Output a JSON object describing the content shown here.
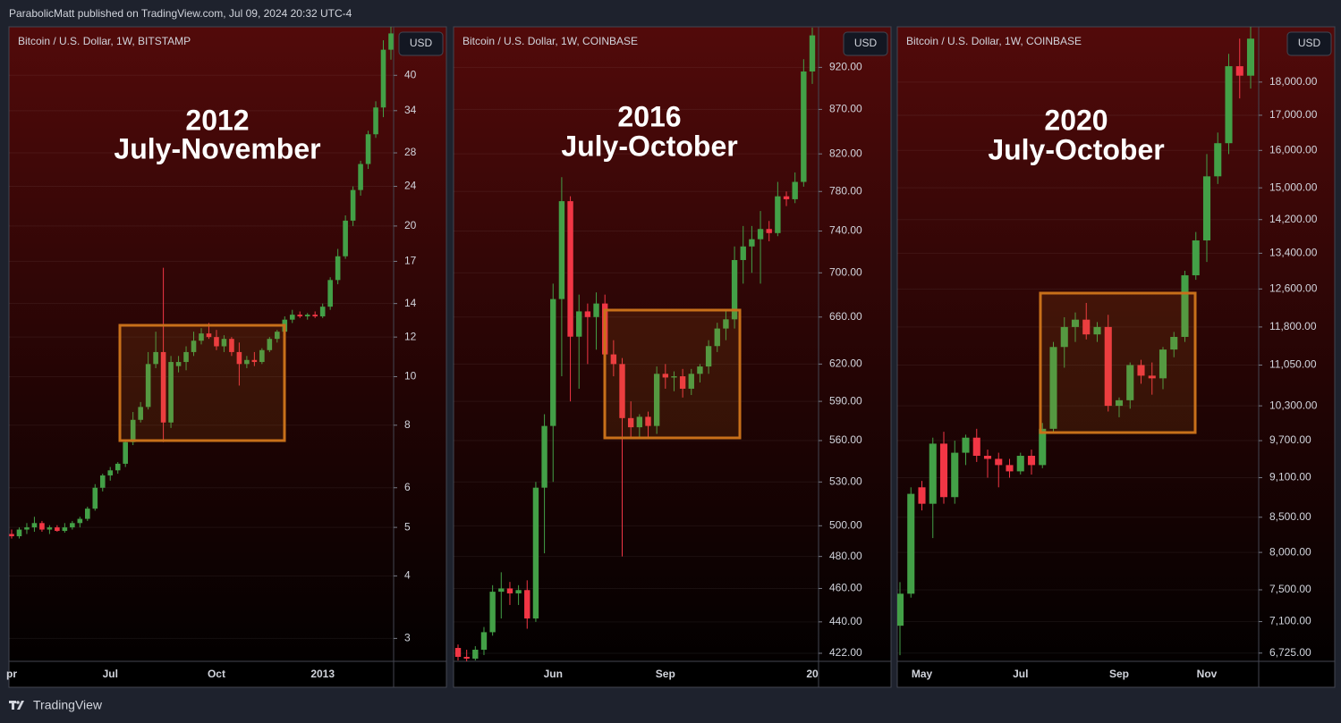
{
  "header": "ParabolicMatt published on TradingView.com, Jul 09, 2024 20:32 UTC-4",
  "footer": "TradingView",
  "chart_data": [
    {
      "type": "candlestick",
      "title": "Bitcoin / U.S. Dollar, 1W, BITSTAMP",
      "currency": "USD",
      "annotation": [
        "2012",
        "July-November"
      ],
      "log_scale": true,
      "grid": true,
      "up_color": "#43a047",
      "down_color": "#f23645",
      "ylim": [
        2.7,
        50
      ],
      "yticks": [
        40,
        34,
        28,
        24,
        20,
        17,
        14,
        12,
        10,
        8,
        6,
        5,
        4,
        3
      ],
      "categories": [
        "pr",
        null,
        null,
        null,
        null,
        null,
        null,
        null,
        null,
        null,
        null,
        null,
        null,
        "Jul",
        null,
        null,
        null,
        null,
        null,
        null,
        null,
        null,
        null,
        null,
        null,
        null,
        null,
        "Oct",
        null,
        null,
        null,
        null,
        null,
        null,
        null,
        null,
        null,
        null,
        null,
        null,
        null,
        "2013",
        null,
        null,
        null,
        null,
        null,
        null,
        null,
        null,
        null
      ],
      "open": [
        4.85,
        4.8,
        4.95,
        5.0,
        5.1,
        4.95,
        5.0,
        4.92,
        5.0,
        5.1,
        5.2,
        5.45,
        6.0,
        6.35,
        6.5,
        6.7,
        7.4,
        8.2,
        8.7,
        10.6,
        11.2,
        8.1,
        10.5,
        10.7,
        11.2,
        11.8,
        12.2,
        12.0,
        11.5,
        11.9,
        11.2,
        10.6,
        10.8,
        10.7,
        11.3,
        11.9,
        12.3,
        13.0,
        13.3,
        13.2,
        13.3,
        13.2,
        13.8,
        15.6,
        17.4,
        20.5,
        23.6,
        26.6,
        30.5,
        34.5,
        45.0
      ],
      "high": [
        4.95,
        5.0,
        5.1,
        5.25,
        5.15,
        5.05,
        5.05,
        5.1,
        5.15,
        5.25,
        5.5,
        6.1,
        6.4,
        6.6,
        6.75,
        7.5,
        8.5,
        8.9,
        11.2,
        12.3,
        16.5,
        11.0,
        11.0,
        11.5,
        12.3,
        12.5,
        12.8,
        12.4,
        12.1,
        12.0,
        11.7,
        11.0,
        11.2,
        11.4,
        12.0,
        12.4,
        13.2,
        13.6,
        13.5,
        13.4,
        13.5,
        14.0,
        15.8,
        18.0,
        21.0,
        24.0,
        27.0,
        31.0,
        35.5,
        47.0,
        50.0
      ],
      "low": [
        4.75,
        4.75,
        4.85,
        4.9,
        4.9,
        4.85,
        4.9,
        4.88,
        4.95,
        5.0,
        5.15,
        5.4,
        5.9,
        6.2,
        6.4,
        6.6,
        7.3,
        8.1,
        8.6,
        10.4,
        7.4,
        7.9,
        10.2,
        10.3,
        11.0,
        11.6,
        11.9,
        11.3,
        11.2,
        11.0,
        9.6,
        10.4,
        10.5,
        10.6,
        11.2,
        11.7,
        12.1,
        12.8,
        13.1,
        13.0,
        13.1,
        13.1,
        13.6,
        15.3,
        17.2,
        20.0,
        23.0,
        26.0,
        30.0,
        33.0,
        43.0
      ],
      "close": [
        4.8,
        4.95,
        5.0,
        5.1,
        4.95,
        5.0,
        4.92,
        5.0,
        5.1,
        5.2,
        5.45,
        6.0,
        6.35,
        6.5,
        6.7,
        7.4,
        8.2,
        8.7,
        10.6,
        11.2,
        8.1,
        10.7,
        10.7,
        11.2,
        11.8,
        12.2,
        12.0,
        11.5,
        11.9,
        11.2,
        10.6,
        10.8,
        10.7,
        11.3,
        11.9,
        12.3,
        13.0,
        13.3,
        13.2,
        13.3,
        13.2,
        13.8,
        15.6,
        17.4,
        20.5,
        23.6,
        26.6,
        30.5,
        34.5,
        45.0,
        48.5
      ]
    },
    {
      "type": "candlestick",
      "title": "Bitcoin / U.S. Dollar, 1W, COINBASE",
      "currency": "USD",
      "annotation": [
        "2016",
        "July-October"
      ],
      "log_scale": true,
      "grid": true,
      "up_color": "#43a047",
      "down_color": "#f23645",
      "ylim": [
        417.5,
        971
      ],
      "yticks": [
        {
          "value": 920,
          "label": "920.00"
        },
        {
          "value": 870,
          "label": "870.00"
        },
        {
          "value": 820,
          "label": "820.00"
        },
        {
          "value": 780,
          "label": "780.00"
        },
        {
          "value": 740,
          "label": "740.00"
        },
        {
          "value": 700,
          "label": "700.00"
        },
        {
          "value": 660,
          "label": "660.00"
        },
        {
          "value": 620,
          "label": "620.00"
        },
        {
          "value": 590,
          "label": "590.00"
        },
        {
          "value": 560,
          "label": "560.00"
        },
        {
          "value": 530,
          "label": "530.00"
        },
        {
          "value": 500,
          "label": "500.00"
        },
        {
          "value": 480,
          "label": "480.00"
        },
        {
          "value": 460,
          "label": "460.00"
        },
        {
          "value": 440,
          "label": "440.00"
        },
        {
          "value": 422,
          "label": "422.00"
        }
      ],
      "categories": [
        null,
        null,
        null,
        null,
        null,
        null,
        null,
        null,
        null,
        null,
        null,
        "Jun",
        null,
        null,
        null,
        null,
        null,
        null,
        null,
        null,
        null,
        null,
        null,
        null,
        "Sep",
        null,
        null,
        null,
        null,
        null,
        null,
        null,
        null,
        null,
        null,
        null,
        null,
        null,
        null,
        null,
        null,
        "20"
      ],
      "open": [
        425,
        420,
        419,
        424,
        434,
        458,
        460,
        457,
        459,
        442,
        526,
        571,
        676,
        770,
        643,
        665,
        660,
        672,
        628,
        620,
        577,
        570,
        578,
        571,
        612,
        609,
        610,
        600,
        612,
        618,
        635,
        650,
        658,
        712,
        725,
        732,
        742,
        738,
        775,
        772,
        790,
        915
      ],
      "high": [
        427,
        424,
        426,
        437,
        462,
        470,
        464,
        462,
        465,
        530,
        580,
        690,
        795,
        775,
        680,
        672,
        682,
        680,
        640,
        625,
        590,
        580,
        582,
        618,
        620,
        614,
        616,
        616,
        620,
        640,
        655,
        665,
        725,
        745,
        745,
        760,
        750,
        790,
        780,
        800,
        930,
        970
      ],
      "low": [
        418,
        417,
        418,
        421,
        432,
        442,
        450,
        450,
        436,
        440,
        482,
        530,
        610,
        590,
        600,
        620,
        632,
        620,
        610,
        480,
        562,
        562,
        562,
        565,
        600,
        598,
        593,
        595,
        605,
        612,
        630,
        640,
        650,
        690,
        700,
        690,
        730,
        735,
        765,
        768,
        785,
        900
      ],
      "close": [
        420,
        419,
        424,
        434,
        458,
        460,
        457,
        459,
        442,
        526,
        571,
        676,
        770,
        643,
        665,
        660,
        672,
        628,
        620,
        577,
        570,
        578,
        571,
        612,
        609,
        610,
        600,
        612,
        618,
        635,
        650,
        658,
        712,
        725,
        732,
        742,
        738,
        775,
        772,
        790,
        915,
        960
      ]
    },
    {
      "type": "candlestick",
      "title": "Bitcoin / U.S. Dollar, 1W, COINBASE",
      "currency": "USD",
      "annotation": [
        "2020",
        "July-October"
      ],
      "log_scale": true,
      "grid": true,
      "up_color": "#43a047",
      "down_color": "#f23645",
      "ylim": [
        6630,
        19800
      ],
      "yticks": [
        {
          "value": 18000,
          "label": "18,000.00"
        },
        {
          "value": 17000,
          "label": "17,000.00"
        },
        {
          "value": 16000,
          "label": "16,000.00"
        },
        {
          "value": 15000,
          "label": "15,000.00"
        },
        {
          "value": 14200,
          "label": "14,200.00"
        },
        {
          "value": 13400,
          "label": "13,400.00"
        },
        {
          "value": 12600,
          "label": "12,600.00"
        },
        {
          "value": 11800,
          "label": "11,800.00"
        },
        {
          "value": 11050,
          "label": "11,050.00"
        },
        {
          "value": 10300,
          "label": "10,300.00"
        },
        {
          "value": 9700,
          "label": "9,700.00"
        },
        {
          "value": 9100,
          "label": "9,100.00"
        },
        {
          "value": 8500,
          "label": "8,500.00"
        },
        {
          "value": 8000,
          "label": "8,000.00"
        },
        {
          "value": 7500,
          "label": "7,500.00"
        },
        {
          "value": 7100,
          "label": "7,100.00"
        },
        {
          "value": 6725,
          "label": "6,725.00"
        }
      ],
      "categories": [
        null,
        null,
        "May",
        null,
        null,
        null,
        null,
        null,
        null,
        null,
        null,
        "Jul",
        null,
        null,
        null,
        null,
        null,
        null,
        null,
        null,
        "Sep",
        null,
        null,
        null,
        null,
        null,
        null,
        null,
        "Nov",
        null,
        null,
        null,
        null
      ],
      "open": [
        7050,
        7450,
        8950,
        8700,
        9650,
        8800,
        9500,
        9750,
        9450,
        9400,
        9300,
        9200,
        9450,
        9300,
        9900,
        11400,
        11800,
        11950,
        11650,
        11800,
        10300,
        10400,
        11050,
        10850,
        10800,
        11350,
        11600,
        12900,
        13700,
        15300,
        16200,
        18500,
        18200
      ],
      "high": [
        7600,
        8950,
        9050,
        9750,
        9850,
        9700,
        9800,
        9900,
        9550,
        9500,
        9400,
        9500,
        9550,
        10000,
        11500,
        12000,
        12100,
        12300,
        11900,
        12050,
        10450,
        11100,
        11150,
        11100,
        11400,
        11700,
        13000,
        13900,
        15900,
        16500,
        18900,
        19400,
        19800
      ],
      "low": [
        6700,
        7400,
        8600,
        8200,
        8700,
        8700,
        9300,
        9350,
        9100,
        8950,
        9100,
        9150,
        9150,
        9250,
        9850,
        11000,
        11500,
        11550,
        11500,
        10200,
        10100,
        10250,
        10700,
        10500,
        10600,
        11200,
        11500,
        12800,
        13200,
        15100,
        15900,
        17500,
        17800
      ],
      "close": [
        7450,
        8850,
        8700,
        9650,
        8800,
        9500,
        9750,
        9450,
        9400,
        9300,
        9200,
        9450,
        9300,
        9900,
        11400,
        11800,
        11950,
        11650,
        11800,
        10300,
        10400,
        11050,
        10850,
        10800,
        11350,
        11600,
        12900,
        13700,
        15300,
        16200,
        18500,
        18200,
        19400
      ]
    }
  ]
}
